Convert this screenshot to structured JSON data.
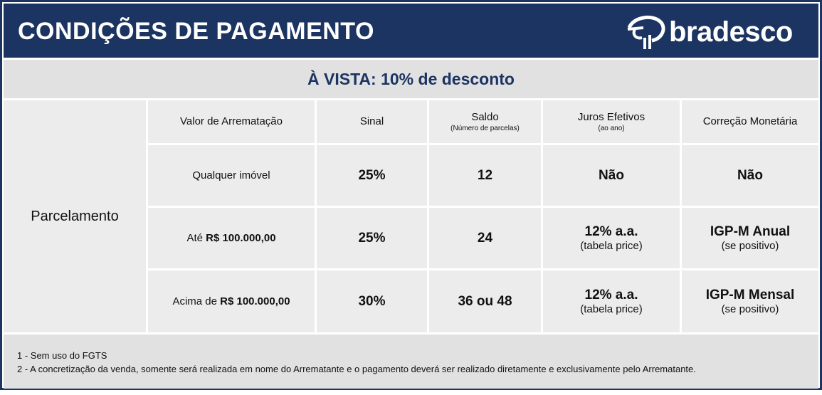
{
  "header": {
    "title": "CONDIÇÕES DE PAGAMENTO",
    "logo_text": "bradesco"
  },
  "banner": {
    "prefix": "À VISTA: ",
    "discount": "10% de desconto"
  },
  "table": {
    "row_label": "Parcelamento",
    "columns": [
      {
        "label": "Valor de Arrematação",
        "sub": ""
      },
      {
        "label": "Sinal",
        "sub": ""
      },
      {
        "label": "Saldo",
        "sub": "(Número de parcelas)"
      },
      {
        "label": "Juros Efetivos",
        "sub": "(ao ano)"
      },
      {
        "label": "Correção Monetária",
        "sub": ""
      }
    ],
    "rows": [
      {
        "valor_prefix": "",
        "valor": "Qualquer imóvel",
        "sinal": "25%",
        "saldo": "12",
        "juros": "Não",
        "juros_sub": "",
        "correcao": "Não",
        "correcao_sub": ""
      },
      {
        "valor_prefix": "Até ",
        "valor": "R$ 100.000,00",
        "sinal": "25%",
        "saldo": "24",
        "juros": "12% a.a.",
        "juros_sub": "(tabela price)",
        "correcao": "IGP-M Anual",
        "correcao_sub": "(se positivo)"
      },
      {
        "valor_prefix": "Acima de ",
        "valor": "R$ 100.000,00",
        "sinal": "30%",
        "saldo": "36 ou 48",
        "juros": "12% a.a.",
        "juros_sub": "(tabela price)",
        "correcao": "IGP-M Mensal",
        "correcao_sub": "(se positivo)"
      }
    ]
  },
  "footer": {
    "notes": [
      "1 - Sem uso do FGTS",
      "2 - A concretização da venda, somente será realizada em nome do Arrematante e o pagamento deverá ser realizado diretamente e exclusivamente pelo Arrematante."
    ]
  },
  "colors": {
    "navy": "#1b3461",
    "cell": "#ececec",
    "band": "#e1e1e1"
  }
}
